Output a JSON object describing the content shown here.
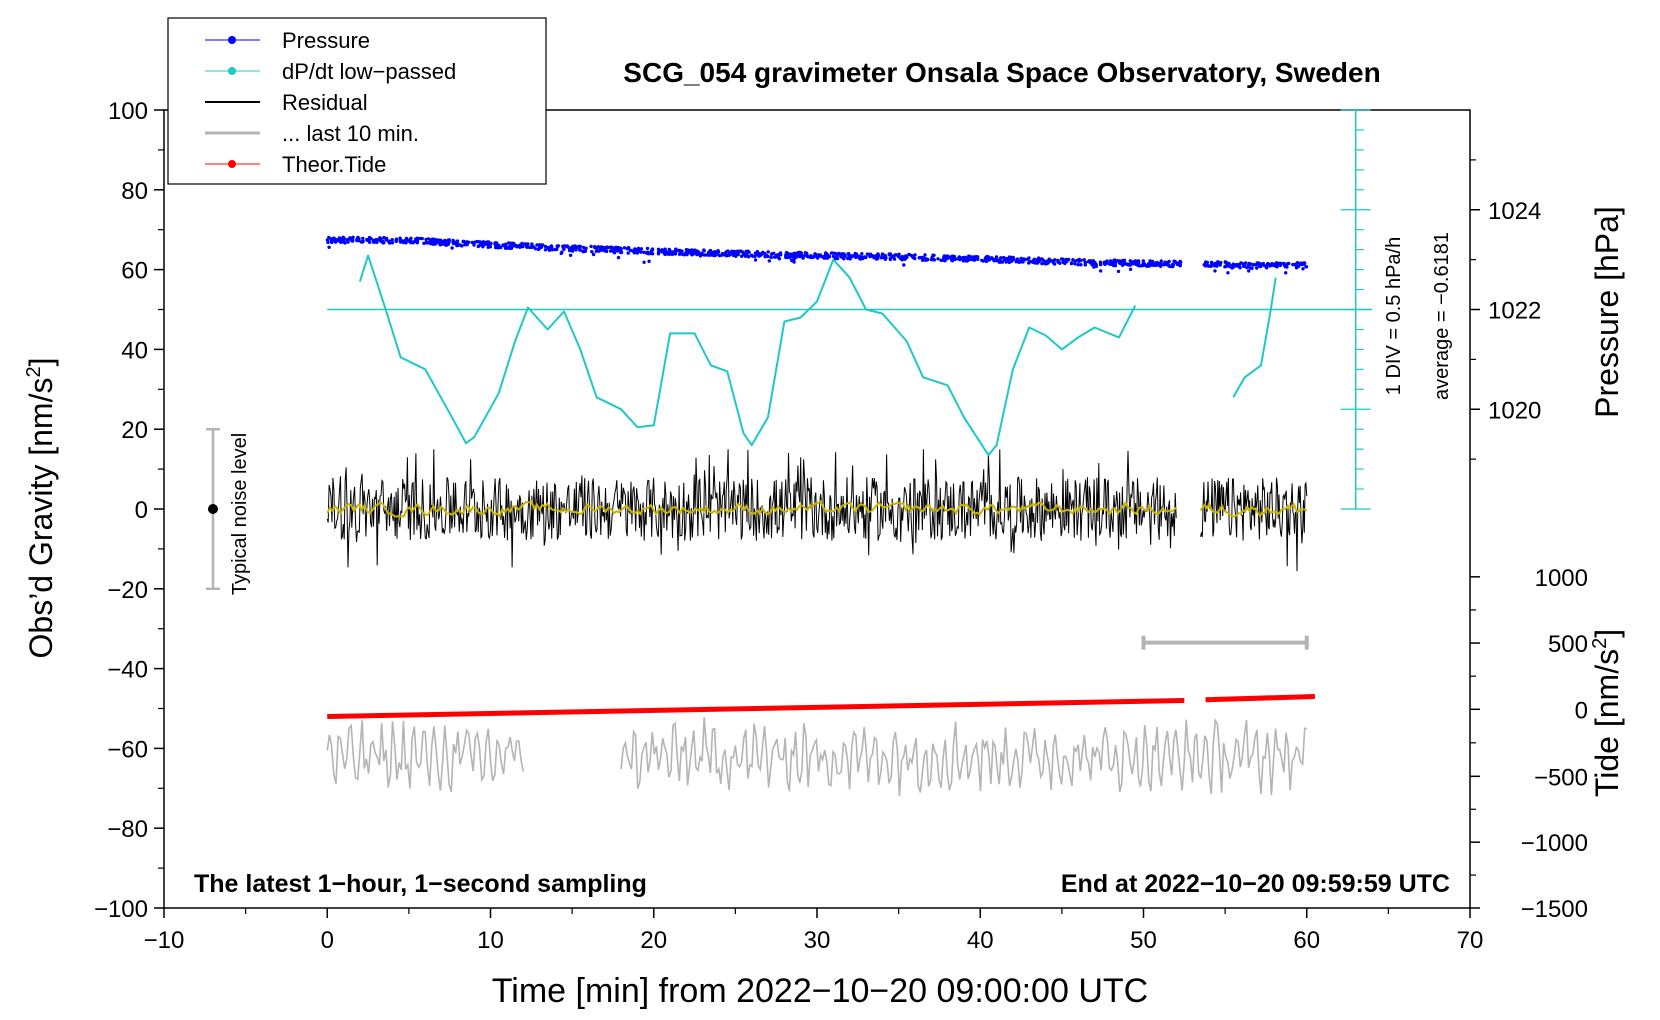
{
  "chart_data": {
    "type": "line",
    "title": "SCG_054 gravimeter Onsala Space Observatory, Sweden",
    "xlabel": "Time [min] from 2022−10−20 09:00:00 UTC",
    "ylabel_left": "Obs’d Gravity [nm/s",
    "ylabel_left_sup": "2",
    "ylabel_left_close": "]",
    "ylabel_right_pressure": "Pressure [hPa]",
    "ylabel_right_tide": "Tide [nm/s",
    "ylabel_right_tide_sup": "2",
    "ylabel_right_tide_close": "]",
    "xlim": [
      -10,
      70
    ],
    "ylim_left": [
      -100,
      100
    ],
    "x_ticks": [
      {
        "v": -10,
        "label": "−10"
      },
      {
        "v": 0,
        "label": "0"
      },
      {
        "v": 10,
        "label": "10"
      },
      {
        "v": 20,
        "label": "20"
      },
      {
        "v": 30,
        "label": "30"
      },
      {
        "v": 40,
        "label": "40"
      },
      {
        "v": 50,
        "label": "50"
      },
      {
        "v": 60,
        "label": "60"
      },
      {
        "v": 70,
        "label": "70"
      }
    ],
    "y_ticks_left": [
      {
        "v": 100,
        "label": "100"
      },
      {
        "v": 80,
        "label": "80"
      },
      {
        "v": 60,
        "label": "60"
      },
      {
        "v": 40,
        "label": "40"
      },
      {
        "v": 20,
        "label": "20"
      },
      {
        "v": 0,
        "label": "0"
      },
      {
        "v": -20,
        "label": "−20"
      },
      {
        "v": -40,
        "label": "−40"
      },
      {
        "v": -60,
        "label": "−60"
      },
      {
        "v": -80,
        "label": "−80"
      },
      {
        "v": -100,
        "label": "−100"
      }
    ],
    "pressure_axis": {
      "label_to_left_value": [
        [
          1020,
          25
        ],
        [
          1022,
          50
        ],
        [
          1024,
          75
        ]
      ],
      "ticks": [
        {
          "v": 1024,
          "label": "1024"
        },
        {
          "v": 1022,
          "label": "1022"
        },
        {
          "v": 1020,
          "label": "1020"
        }
      ]
    },
    "tide_axis": {
      "ticks": [
        {
          "v": 1000,
          "label": "1000",
          "left": -17
        },
        {
          "v": 500,
          "label": "500",
          "left": -33.6
        },
        {
          "v": 0,
          "label": "0",
          "left": -50.2
        },
        {
          "v": -500,
          "label": "−500",
          "left": -67
        },
        {
          "v": -1000,
          "label": "−1000",
          "left": -83.5
        },
        {
          "v": -1500,
          "label": "−1500",
          "left": -100
        }
      ]
    },
    "series": [
      {
        "name": "Pressure",
        "color": "#0000ff",
        "x": [
          0,
          5,
          10,
          15,
          20,
          25,
          30,
          35,
          40,
          45,
          50,
          52.3,
          53.7,
          57,
          60
        ],
        "y": [
          67.5,
          67.3,
          66.2,
          65.3,
          64.6,
          64.0,
          63.5,
          63.2,
          62.7,
          62.0,
          61.5,
          61.4,
          61.5,
          61.0,
          61.2
        ]
      },
      {
        "name": "dP/dt low−passed",
        "color": "#1fc8c8",
        "segments": [
          {
            "x": [
              2.0,
              2.5,
              3.5,
              4.5,
              6.0,
              7.5,
              8.5,
              9.0,
              10.5,
              11.5,
              12.3,
              13.5,
              14.5,
              15.5,
              16.5,
              18.0,
              19.0,
              20.0,
              21.0,
              22.5,
              23.5,
              24.5,
              25.5,
              26.0,
              27.0,
              28.0,
              29.0,
              30.0,
              31.0,
              32.0,
              33.0,
              34.0,
              35.5,
              36.5,
              38.0,
              39.0,
              40.5,
              41.0,
              42.0,
              43.0,
              44.0,
              45.0,
              46.0,
              47.0,
              48.5,
              49.5
            ],
            "y": [
              57,
              63.5,
              51,
              38,
              35,
              24,
              16.5,
              18,
              29,
              42,
              50.5,
              45,
              49.5,
              40,
              28,
              25,
              20.5,
              21,
              44,
              44,
              36,
              34.5,
              19,
              16,
              23,
              47,
              48,
              52,
              62.5,
              58,
              50,
              49,
              42,
              33,
              31,
              23,
              13.5,
              16,
              35,
              45.5,
              43.5,
              40,
              43,
              45.5,
              43,
              51
            ]
          },
          {
            "x": [
              55.5,
              56.2,
              57.2,
              57.8,
              58.1
            ],
            "y": [
              28,
              33,
              36,
              50,
              58
            ]
          }
        ],
        "reference_line_y": 50
      },
      {
        "name": "Residual",
        "color": "#000000",
        "amplitude_range": [
          -18,
          15
        ],
        "x_range": [
          0,
          60
        ],
        "gap": [
          52,
          53.5
        ]
      },
      {
        "name": "... last 10 min.",
        "color": "#b4b4b4",
        "x_range": [
          0,
          60
        ],
        "approx_y_range": [
          -80,
          -48
        ]
      },
      {
        "name": "Theor.Tide",
        "color": "#ff0000",
        "x": [
          0,
          52.5,
          53.8,
          60.5
        ],
        "y": [
          -52,
          -48,
          -47.8,
          -47
        ]
      }
    ],
    "annotations": {
      "scale_bar_main": "1 DIV = 0.5 hPa/h",
      "scale_bar_average": "average = −0.6181",
      "noise_label": "Typical noise level",
      "noise_range": [
        -20,
        20
      ],
      "last10_bar_range": [
        50,
        60
      ],
      "footer_left": "The latest 1−hour, 1−second sampling",
      "footer_right": "End at 2022−10−20 09:59:59 UTC"
    },
    "legend": {
      "placement": "top-left",
      "entries": [
        {
          "label": "Pressure",
          "color": "#0000ff",
          "marker": true,
          "width": 1
        },
        {
          "label": "dP/dt low−passed",
          "color": "#1fc8c8",
          "marker": true,
          "width": 1
        },
        {
          "label": "Residual",
          "color": "#000000",
          "marker": false,
          "width": 2
        },
        {
          "label": "... last 10 min.",
          "color": "#b4b4b4",
          "marker": false,
          "width": 3
        },
        {
          "label": "Theor.Tide",
          "color": "#ff0000",
          "marker": true,
          "width": 1
        }
      ]
    }
  }
}
